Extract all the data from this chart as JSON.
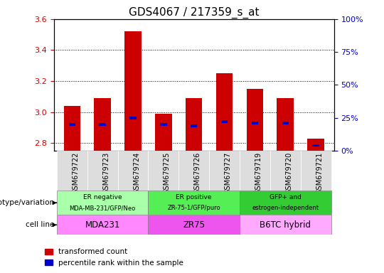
{
  "title": "GDS4067 / 217359_s_at",
  "samples": [
    "GSM679722",
    "GSM679723",
    "GSM679724",
    "GSM679725",
    "GSM679726",
    "GSM679727",
    "GSM679719",
    "GSM679720",
    "GSM679721"
  ],
  "red_values": [
    3.04,
    3.09,
    3.52,
    2.99,
    3.09,
    3.25,
    3.15,
    3.09,
    2.83
  ],
  "blue_values": [
    20.0,
    20.0,
    25.0,
    20.0,
    19.0,
    22.0,
    21.0,
    21.0,
    4.0
  ],
  "ylim_left": [
    2.75,
    3.6
  ],
  "ylim_right": [
    0,
    100
  ],
  "yticks_left": [
    2.8,
    3.0,
    3.2,
    3.4,
    3.6
  ],
  "yticks_right": [
    0,
    25,
    50,
    75,
    100
  ],
  "groups": [
    {
      "label": "ER negative\nMDA-MB-231/GFP/Neo",
      "span": [
        0,
        3
      ],
      "color": "#aaffaa"
    },
    {
      "label": "ER positive\nZR-75-1/GFP/puro",
      "span": [
        3,
        6
      ],
      "color": "#55ee55"
    },
    {
      "label": "GFP+ and\nestrogen-independent",
      "span": [
        6,
        9
      ],
      "color": "#33cc33"
    }
  ],
  "cell_lines": [
    {
      "label": "MDA231",
      "span": [
        0,
        3
      ],
      "color": "#ff88ff"
    },
    {
      "label": "ZR75",
      "span": [
        3,
        6
      ],
      "color": "#ee55ee"
    },
    {
      "label": "B6TC hybrid",
      "span": [
        6,
        9
      ],
      "color": "#ffaaff"
    }
  ],
  "bar_color": "#cc0000",
  "blue_color": "#0000cc",
  "bar_width": 0.55,
  "base_value": 2.75,
  "title_fontsize": 11,
  "axis_label_color_left": "#cc0000",
  "axis_label_color_right": "#0000cc",
  "grid_color": "black",
  "grid_style": "dotted"
}
